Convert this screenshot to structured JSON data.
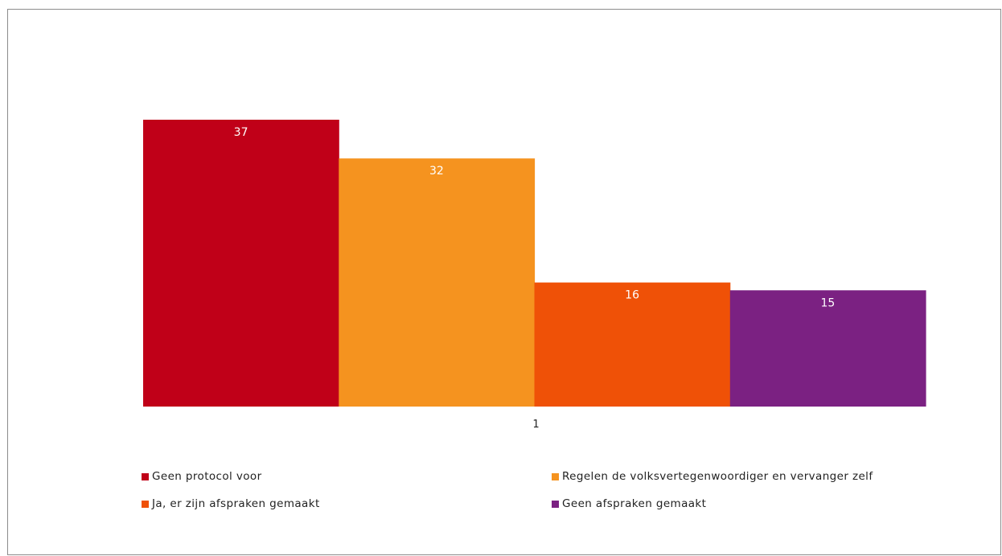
{
  "chart_data": {
    "type": "bar",
    "categories": [
      "1"
    ],
    "series": [
      {
        "name": "Geen protocol voor",
        "values": [
          37
        ],
        "color": "#c00018"
      },
      {
        "name": "Regelen de volksvertegenwoordiger en vervanger zelf",
        "values": [
          32
        ],
        "color": "#f5931f"
      },
      {
        "name": "Ja, er zijn afspraken gemaakt",
        "values": [
          16
        ],
        "color": "#ef5107"
      },
      {
        "name": "Geen afspraken gemaakt",
        "values": [
          15
        ],
        "color": "#7b2182"
      }
    ],
    "title": "",
    "xlabel": "",
    "ylabel": "",
    "ylim": [
      0,
      37
    ],
    "grid": false,
    "legend_position": "bottom",
    "data_labels": true,
    "value_label_color": "#ffffff"
  }
}
